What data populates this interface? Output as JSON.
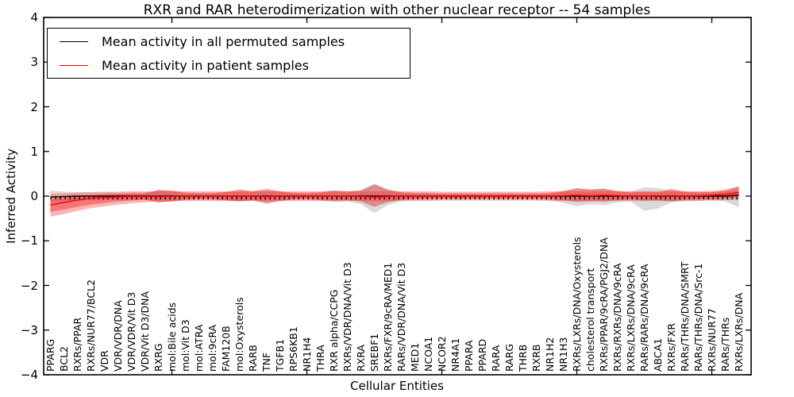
{
  "chart_data": {
    "type": "line",
    "title": "RXR and RAR heterodimerization with other nuclear receptor -- 54 samples",
    "xlabel": "Cellular Entities",
    "ylabel": "Inferred Activity",
    "ylim": [
      -4,
      4
    ],
    "grid": false,
    "legend_position": "upper left",
    "colors": {
      "permuted_line": "#000000",
      "patient_line": "#ff0000",
      "permuted_band": "rgba(130,130,130,0.30)",
      "patient_band_outer": "rgba(255,60,60,0.38)",
      "patient_band_inner": "rgba(230,30,30,0.42)"
    },
    "axes": {
      "y_tick_values": [
        4,
        3,
        2,
        1,
        0,
        -1,
        -2,
        -3,
        -4
      ],
      "y_tick_labels": [
        "4",
        "3",
        "2",
        "1",
        "0",
        "−1",
        "−2",
        "−3",
        "−4"
      ],
      "x_tick_indices": [
        9,
        19,
        29,
        39,
        49
      ]
    },
    "categories": [
      "PPARG",
      "BCL2",
      "RXRs/PPAR",
      "RXRs/NUR77/BCL2",
      "VDR",
      "VDR/VDR/DNA",
      "VDR/VDR/Vit D3",
      "VDR/Vit D3/DNA",
      "RXRG",
      "mol:Bile acids",
      "mol:Vit D3",
      "mol:ATRA",
      "mol:9cRA",
      "FAM120B",
      "mol:Oxysterols",
      "RARB",
      "TNF",
      "TGFB1",
      "RPS6KB1",
      "NR1H4",
      "THRA",
      "RXR alpha/CCPG",
      "RXRs/VDR/DNA/Vit D3",
      "RXRA",
      "SREBF1",
      "RXRs/FXR/9cRA/MED1",
      "RARs/VDR/DNA/Vit D3",
      "MED1",
      "NCOA1",
      "NCOR2",
      "NR4A1",
      "PPARA",
      "PPARD",
      "RARA",
      "RARG",
      "THRB",
      "RXRB",
      "NR1H2",
      "NR1H3",
      "RXRs/LXRs/DNA/Oxysterols",
      "cholesterol transport",
      "RXRs/PPAR/9cRA/PGJ2/DNA",
      "RXRs/RXRs/DNA/9cRA",
      "RXRs/LXRs/DNA/9cRA",
      "RARs/RARs/DNA/9cRA",
      "ABCA1",
      "RXRs/FXR",
      "RARs/THRs/DNA/SMRT",
      "RARs/THRs/DNA/Src-1",
      "RXRs/NUR77",
      "RARs/THRs",
      "RXRs/LXRs/DNA"
    ],
    "series": [
      {
        "name": "Mean activity in all permuted samples",
        "color": "#000000",
        "values": [
          -0.02,
          -0.01,
          0,
          0,
          0,
          0,
          0,
          0,
          0,
          0,
          0,
          0,
          0,
          0,
          0,
          0,
          0,
          0,
          0,
          0,
          0,
          0,
          0,
          0,
          0,
          0,
          0,
          0,
          0,
          0,
          0,
          0,
          0,
          0,
          0,
          0,
          0,
          0,
          0,
          0,
          0,
          0,
          0,
          0,
          0,
          0,
          0,
          0,
          0,
          0,
          0,
          0.02
        ],
        "band_upper": [
          0.12,
          0.1,
          0.09,
          0.08,
          0.08,
          0.08,
          0.08,
          0.08,
          0.13,
          0.12,
          0.09,
          0.08,
          0.08,
          0.1,
          0.11,
          0.1,
          0.12,
          0.1,
          0.08,
          0.08,
          0.1,
          0.13,
          0.11,
          0.14,
          0.28,
          0.16,
          0.1,
          0.08,
          0.08,
          0.07,
          0.07,
          0.07,
          0.07,
          0.07,
          0.07,
          0.07,
          0.07,
          0.08,
          0.12,
          0.17,
          0.15,
          0.16,
          0.12,
          0.1,
          0.2,
          0.18,
          0.12,
          0.1,
          0.1,
          0.09,
          0.1,
          0.12
        ],
        "band_lower": [
          -0.14,
          -0.11,
          -0.09,
          -0.08,
          -0.08,
          -0.08,
          -0.08,
          -0.08,
          -0.13,
          -0.12,
          -0.09,
          -0.08,
          -0.08,
          -0.1,
          -0.11,
          -0.1,
          -0.13,
          -0.1,
          -0.08,
          -0.08,
          -0.1,
          -0.13,
          -0.12,
          -0.18,
          -0.38,
          -0.2,
          -0.11,
          -0.08,
          -0.08,
          -0.07,
          -0.07,
          -0.07,
          -0.07,
          -0.07,
          -0.07,
          -0.07,
          -0.08,
          -0.09,
          -0.15,
          -0.23,
          -0.18,
          -0.2,
          -0.14,
          -0.12,
          -0.33,
          -0.28,
          -0.14,
          -0.11,
          -0.1,
          -0.09,
          -0.12,
          -0.25
        ]
      },
      {
        "name": "Mean activity in patient samples",
        "color": "#ff0000",
        "values": [
          -0.2,
          -0.14,
          -0.09,
          -0.05,
          -0.03,
          -0.02,
          -0.01,
          -0.01,
          -0.01,
          -0.01,
          0,
          0,
          0,
          0,
          0,
          0,
          -0.01,
          0,
          0,
          0,
          0,
          0,
          0,
          -0.01,
          -0.02,
          -0.01,
          0,
          0,
          0,
          0,
          0,
          0,
          0,
          0,
          0,
          0,
          0,
          0,
          0.01,
          0.02,
          0.01,
          0.02,
          0.01,
          0,
          0,
          0.01,
          0.01,
          0,
          0.01,
          0.02,
          0.04,
          0.08
        ],
        "band_upper": [
          0.05,
          0.06,
          0.08,
          0.09,
          0.1,
          0.1,
          0.11,
          0.11,
          0.11,
          0.11,
          0.11,
          0.11,
          0.11,
          0.11,
          0.11,
          0.11,
          0.11,
          0.11,
          0.11,
          0.11,
          0.11,
          0.11,
          0.11,
          0.11,
          0.11,
          0.11,
          0.11,
          0.11,
          0.11,
          0.1,
          0.1,
          0.1,
          0.1,
          0.1,
          0.1,
          0.1,
          0.1,
          0.11,
          0.11,
          0.11,
          0.11,
          0.11,
          0.11,
          0.11,
          0.11,
          0.11,
          0.11,
          0.11,
          0.11,
          0.12,
          0.15,
          0.22
        ],
        "band_lower": [
          -0.46,
          -0.4,
          -0.33,
          -0.27,
          -0.23,
          -0.19,
          -0.16,
          -0.14,
          -0.12,
          -0.11,
          -0.11,
          -0.11,
          -0.11,
          -0.11,
          -0.11,
          -0.11,
          -0.11,
          -0.11,
          -0.11,
          -0.11,
          -0.11,
          -0.11,
          -0.11,
          -0.11,
          -0.11,
          -0.11,
          -0.11,
          -0.11,
          -0.11,
          -0.1,
          -0.1,
          -0.1,
          -0.1,
          -0.1,
          -0.1,
          -0.1,
          -0.1,
          -0.11,
          -0.11,
          -0.11,
          -0.11,
          -0.11,
          -0.11,
          -0.11,
          -0.11,
          -0.11,
          -0.11,
          -0.11,
          -0.11,
          -0.1,
          -0.09,
          -0.08
        ],
        "inner_band_upper": [
          -0.07,
          -0.04,
          0.0,
          0.02,
          0.04,
          0.05,
          0.06,
          0.06,
          0.14,
          0.12,
          0.07,
          0.06,
          0.06,
          0.09,
          0.15,
          0.11,
          0.16,
          0.11,
          0.07,
          0.06,
          0.08,
          0.12,
          0.1,
          0.12,
          0.26,
          0.14,
          0.08,
          0.06,
          0.06,
          0.05,
          0.05,
          0.05,
          0.05,
          0.05,
          0.05,
          0.05,
          0.05,
          0.06,
          0.11,
          0.18,
          0.15,
          0.17,
          0.11,
          0.08,
          0.1,
          0.09,
          0.16,
          0.1,
          0.08,
          0.09,
          0.12,
          0.21
        ],
        "inner_band_lower": [
          -0.35,
          -0.3,
          -0.24,
          -0.19,
          -0.15,
          -0.12,
          -0.1,
          -0.08,
          -0.14,
          -0.12,
          -0.07,
          -0.06,
          -0.06,
          -0.09,
          -0.12,
          -0.09,
          -0.17,
          -0.11,
          -0.07,
          -0.06,
          -0.08,
          -0.1,
          -0.09,
          -0.12,
          -0.24,
          -0.14,
          -0.08,
          -0.06,
          -0.06,
          -0.05,
          -0.05,
          -0.05,
          -0.05,
          -0.05,
          -0.05,
          -0.05,
          -0.05,
          -0.06,
          -0.09,
          -0.13,
          -0.11,
          -0.12,
          -0.09,
          -0.07,
          -0.1,
          -0.09,
          -0.12,
          -0.08,
          -0.07,
          -0.07,
          -0.05,
          -0.03
        ]
      }
    ]
  }
}
